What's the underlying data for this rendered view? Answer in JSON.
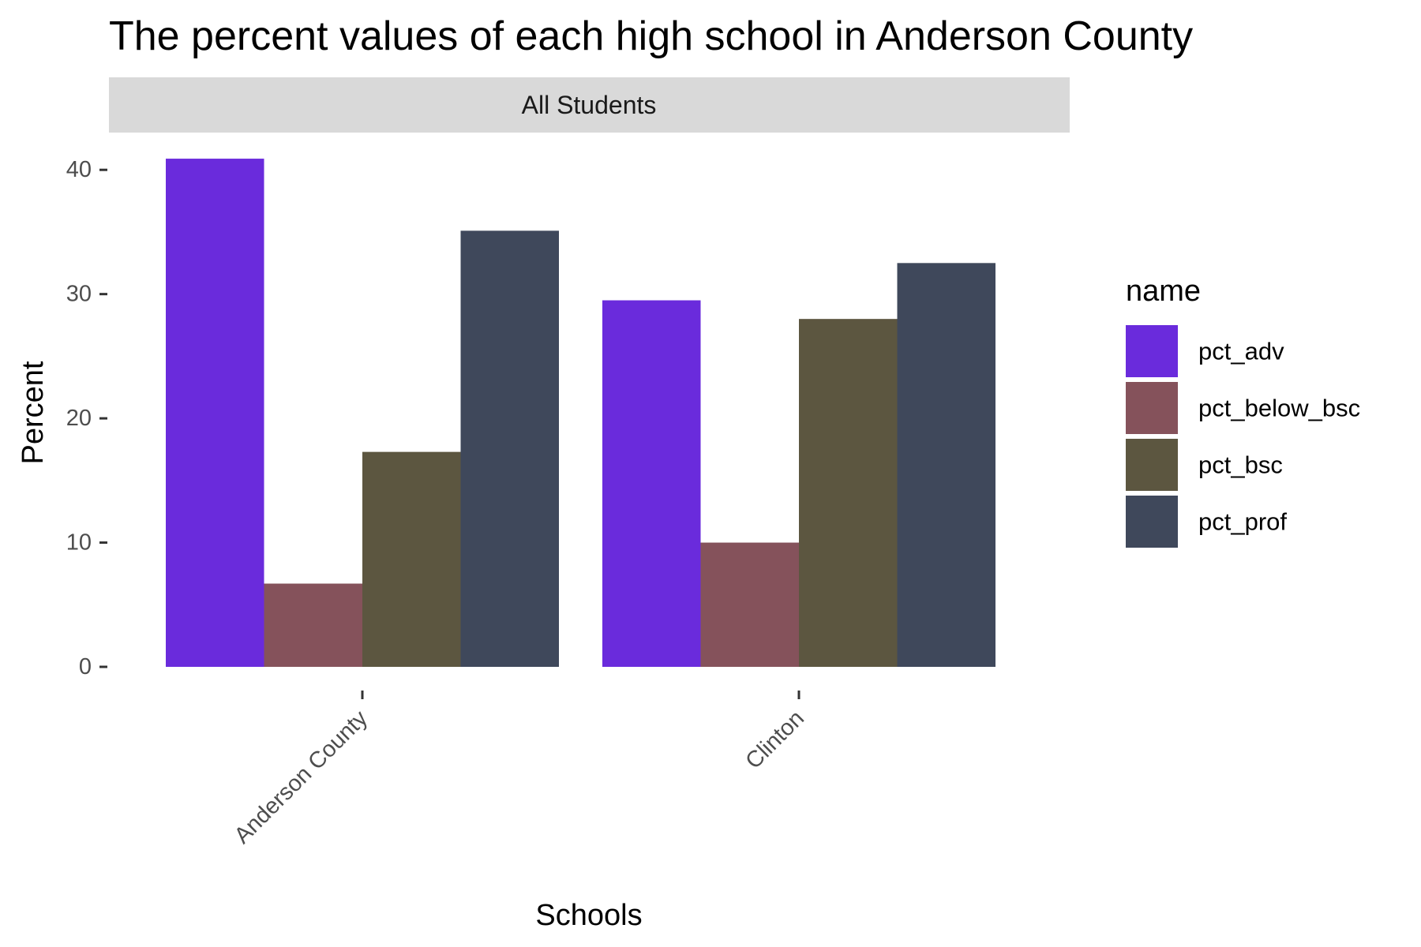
{
  "chart_data": {
    "type": "bar",
    "title": "The percent values of each high school in Anderson County",
    "facet_label": "All Students",
    "xlabel": "Schools",
    "ylabel": "Percent",
    "categories": [
      "Anderson County",
      "Clinton"
    ],
    "series": [
      {
        "name": "pct_adv",
        "values": [
          40.9,
          29.5
        ],
        "color": "#6a2bdc"
      },
      {
        "name": "pct_below_bsc",
        "values": [
          6.7,
          10.0
        ],
        "color": "#85525b"
      },
      {
        "name": "pct_bsc",
        "values": [
          17.3,
          28.0
        ],
        "color": "#5c5640"
      },
      {
        "name": "pct_prof",
        "values": [
          35.1,
          32.5
        ],
        "color": "#3f485b"
      }
    ],
    "ylim": [
      0,
      43
    ],
    "yticks": [
      0,
      10,
      20,
      30,
      40
    ],
    "grid": false,
    "legend": {
      "title": "name",
      "position": "right"
    }
  }
}
